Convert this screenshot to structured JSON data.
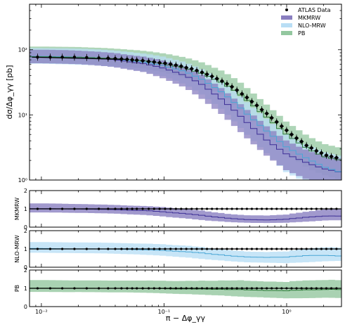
{
  "chart_data": {
    "type": "line",
    "x_scale": "log",
    "y_scale": "log",
    "xlabel": "π − Δφ_γγ",
    "ylabel": "dσ/Δφ_γγ [pb]",
    "xlim": [
      0.008,
      2.8
    ],
    "ylim": [
      1,
      500
    ],
    "x_ticks": [
      {
        "value": 0.01,
        "label": "10⁻²"
      },
      {
        "value": 0.1,
        "label": "10⁻¹"
      },
      {
        "value": 1,
        "label": "10⁰"
      }
    ],
    "y_ticks": [
      {
        "value": 1,
        "label": "10⁰"
      },
      {
        "value": 10,
        "label": "10¹"
      },
      {
        "value": 100,
        "label": "10²"
      }
    ],
    "legend": {
      "placement": "top-right",
      "entries": [
        {
          "label": "ATLAS Data",
          "color": "#000000",
          "style": "marker"
        },
        {
          "label": "MKMRW",
          "color": "#8a7fc0",
          "style": "band"
        },
        {
          "label": "NLO-MRW",
          "color": "#b9def5",
          "style": "band"
        },
        {
          "label": "PB",
          "color": "#93c79f",
          "style": "band"
        }
      ]
    },
    "data_series": {
      "name": "ATLAS Data",
      "color": "#000000",
      "x": [
        0.0093,
        0.0118,
        0.0148,
        0.0186,
        0.0234,
        0.0294,
        0.035,
        0.04,
        0.045,
        0.05,
        0.055,
        0.06,
        0.067,
        0.075,
        0.083,
        0.092,
        0.102,
        0.113,
        0.125,
        0.138,
        0.152,
        0.168,
        0.185,
        0.204,
        0.224,
        0.246,
        0.27,
        0.297,
        0.326,
        0.358,
        0.393,
        0.432,
        0.474,
        0.52,
        0.571,
        0.627,
        0.688,
        0.755,
        0.829,
        0.91,
        0.999,
        1.097,
        1.204,
        1.322,
        1.451,
        1.593,
        1.749,
        1.92,
        2.108,
        2.314,
        2.55
      ],
      "y": [
        77,
        77,
        77,
        77,
        76,
        75,
        74,
        73,
        72,
        71,
        70,
        69,
        68,
        66,
        65,
        63,
        62,
        60,
        58,
        56,
        53,
        51,
        48,
        45,
        42,
        39,
        36,
        33,
        30,
        27,
        24,
        21,
        18.5,
        16,
        14,
        12,
        10.5,
        9,
        7.8,
        6.7,
        5.8,
        5,
        4.4,
        3.9,
        3.4,
        3.1,
        2.8,
        2.6,
        2.4,
        2.3,
        2.2
      ]
    },
    "series": [
      {
        "name": "MKMRW",
        "color": "#3d2f96",
        "band_color": "#8a7fc0",
        "x": [
          0.008,
          0.01,
          0.015,
          0.02,
          0.03,
          0.04,
          0.05,
          0.07,
          0.1,
          0.15,
          0.2,
          0.3,
          0.4,
          0.5,
          0.7,
          1.0,
          1.5,
          2.0,
          2.8
        ],
        "y": [
          78,
          78,
          77,
          76,
          73,
          70,
          66,
          61,
          52,
          40,
          30,
          17,
          10.5,
          7,
          4,
          2.5,
          1.8,
          1.5,
          1.3
        ],
        "band_low": [
          62,
          62,
          61,
          60,
          57,
          54,
          50,
          45,
          36,
          26,
          18,
          10,
          6,
          4,
          2.3,
          1.4,
          1.0,
          0.9,
          0.8
        ],
        "band_high": [
          100,
          100,
          99,
          97,
          93,
          89,
          84,
          78,
          68,
          54,
          42,
          25,
          16,
          11,
          6.5,
          4,
          2.8,
          2.4,
          2.1
        ]
      },
      {
        "name": "NLO-MRW",
        "color": "#4aa7d6",
        "band_color": "#b9def5",
        "x": [
          0.008,
          0.01,
          0.015,
          0.02,
          0.03,
          0.04,
          0.05,
          0.07,
          0.1,
          0.15,
          0.2,
          0.3,
          0.4,
          0.5,
          0.7,
          1.0,
          1.5,
          2.0,
          2.8
        ],
        "y": [
          79,
          79,
          78,
          77,
          75,
          72,
          69,
          64,
          57,
          46,
          36,
          22,
          14,
          9.5,
          5.5,
          3.2,
          2.1,
          1.6,
          1.3
        ],
        "band_low": [
          61,
          61,
          60,
          59,
          57,
          54,
          51,
          46,
          39,
          29,
          21,
          12,
          7,
          4.5,
          2.5,
          1.3,
          0.9,
          0.8,
          0.75
        ],
        "band_high": [
          106,
          106,
          105,
          104,
          101,
          97,
          93,
          87,
          78,
          64,
          51,
          32,
          21,
          14.5,
          8.5,
          5,
          3.4,
          2.7,
          2.3
        ]
      },
      {
        "name": "PB",
        "color": "#2f7d3a",
        "band_color": "#93c79f",
        "x": [
          0.008,
          0.01,
          0.015,
          0.02,
          0.03,
          0.04,
          0.05,
          0.07,
          0.1,
          0.15,
          0.2,
          0.3,
          0.4,
          0.5,
          0.7,
          1.0,
          1.5,
          2.0,
          2.8
        ],
        "y": [
          78,
          78,
          77,
          77,
          75,
          73,
          71,
          67,
          61,
          52,
          44,
          31,
          22,
          15.5,
          9,
          5,
          3,
          2.3,
          2.0
        ],
        "band_low": [
          62,
          62,
          61,
          61,
          59,
          57,
          55,
          51,
          45,
          37,
          30,
          20,
          13,
          9,
          5,
          2.6,
          1.5,
          1.2,
          1.0
        ],
        "band_high": [
          112,
          112,
          111,
          110,
          107,
          104,
          101,
          96,
          88,
          76,
          65,
          47,
          34,
          24,
          14,
          7.8,
          4.7,
          3.6,
          3.1
        ]
      }
    ],
    "ratio_panels": [
      {
        "ylabel": "MKMRW",
        "ylim": [
          0,
          2
        ],
        "y_ticks": [
          0,
          1,
          2
        ]
      },
      {
        "ylabel": "NLO-MRW",
        "ylim": [
          0,
          2
        ],
        "y_ticks": [
          0,
          1,
          2
        ]
      },
      {
        "ylabel": "PB",
        "ylim": [
          0,
          2
        ],
        "y_ticks": [
          0,
          1,
          2
        ]
      }
    ]
  }
}
